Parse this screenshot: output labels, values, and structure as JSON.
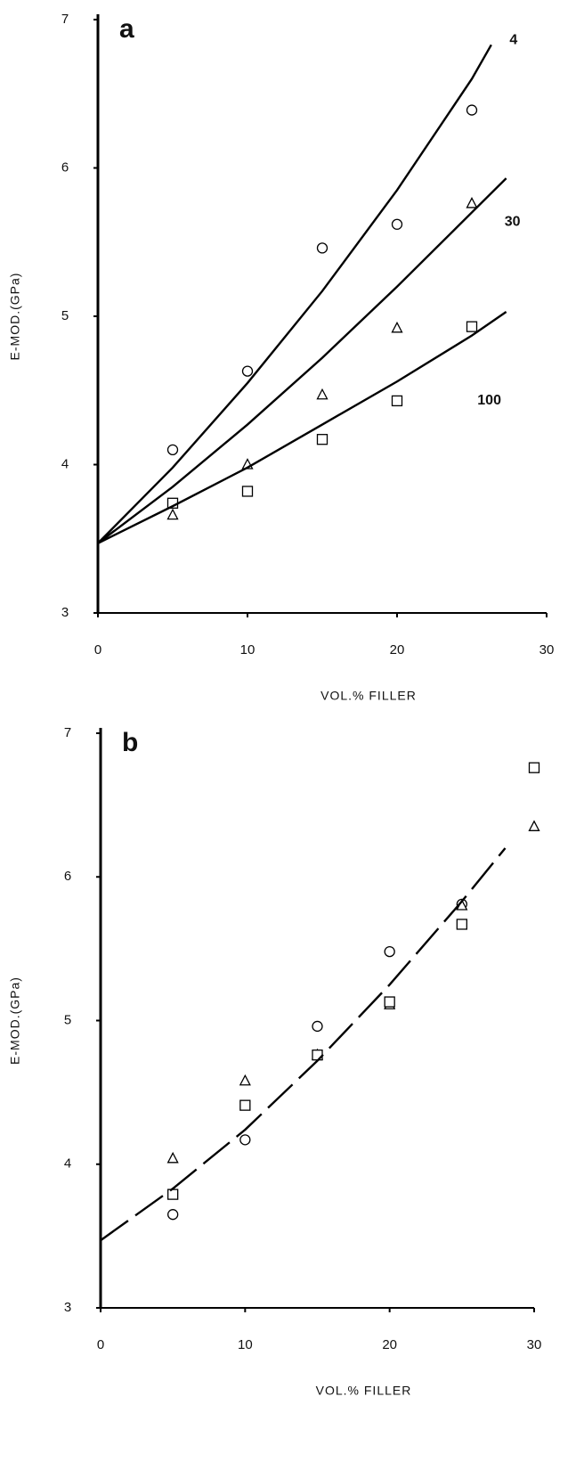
{
  "chart_data": [
    {
      "type": "scatter",
      "panel_label": "a",
      "ylabel": "E-MOD.(GPa)",
      "xlabel": "VOL.% FILLER",
      "xlim": [
        0,
        30
      ],
      "ylim": [
        3,
        7
      ],
      "xticks": [
        0,
        10,
        20,
        30
      ],
      "yticks": [
        3,
        4,
        5,
        6,
        7
      ],
      "series": [
        {
          "marker": "circle",
          "color": "#000000",
          "x": [
            5,
            10,
            15,
            20,
            25
          ],
          "values": [
            4.1,
            4.63,
            5.46,
            5.62,
            6.39
          ]
        },
        {
          "marker": "triangle",
          "color": "#000000",
          "x": [
            5,
            10,
            15,
            20,
            25
          ],
          "values": [
            3.66,
            4.0,
            4.47,
            4.92,
            5.76
          ]
        },
        {
          "marker": "square",
          "color": "#000000",
          "x": [
            5,
            10,
            15,
            20,
            25
          ],
          "values": [
            3.74,
            3.82,
            4.17,
            4.43,
            4.93
          ]
        },
        {
          "name": "4",
          "line": "solid",
          "color": "#000000",
          "x": [
            0,
            5,
            10,
            15,
            20,
            25,
            26.3
          ],
          "values": [
            3.47,
            3.98,
            4.55,
            5.17,
            5.85,
            6.6,
            6.83
          ]
        },
        {
          "name": "30",
          "line": "solid",
          "color": "#000000",
          "x": [
            0,
            5,
            10,
            15,
            20,
            25,
            27.3
          ],
          "values": [
            3.47,
            3.85,
            4.27,
            4.72,
            5.2,
            5.7,
            5.93
          ]
        },
        {
          "name": "100",
          "line": "solid",
          "color": "#000000",
          "x": [
            0,
            5,
            10,
            15,
            20,
            25,
            27.3
          ],
          "values": [
            3.47,
            3.72,
            3.98,
            4.27,
            4.56,
            4.87,
            5.03
          ]
        }
      ]
    },
    {
      "type": "scatter",
      "panel_label": "b",
      "ylabel": "E-MOD.(GPa)",
      "xlabel": "VOL.% FILLER",
      "xlim": [
        0,
        30
      ],
      "ylim": [
        3,
        7
      ],
      "xticks": [
        0,
        10,
        20,
        30
      ],
      "yticks": [
        3,
        4,
        5,
        6,
        7
      ],
      "series": [
        {
          "marker": "circle",
          "color": "#000000",
          "x": [
            5,
            10,
            15,
            20,
            25
          ],
          "values": [
            3.65,
            4.17,
            4.96,
            5.48,
            5.81
          ]
        },
        {
          "marker": "triangle",
          "color": "#000000",
          "x": [
            5,
            10,
            15,
            20,
            25,
            30
          ],
          "values": [
            4.04,
            4.58,
            4.76,
            5.11,
            5.8,
            6.35
          ]
        },
        {
          "marker": "square",
          "color": "#000000",
          "x": [
            5,
            10,
            15,
            20,
            25,
            30
          ],
          "values": [
            3.79,
            4.41,
            4.76,
            5.13,
            5.67,
            6.76
          ]
        },
        {
          "line": "dashed",
          "color": "#000000",
          "x": [
            0,
            5,
            10,
            15,
            20,
            25,
            28
          ],
          "values": [
            3.47,
            3.83,
            4.24,
            4.72,
            5.25,
            5.83,
            6.2
          ]
        }
      ]
    }
  ]
}
